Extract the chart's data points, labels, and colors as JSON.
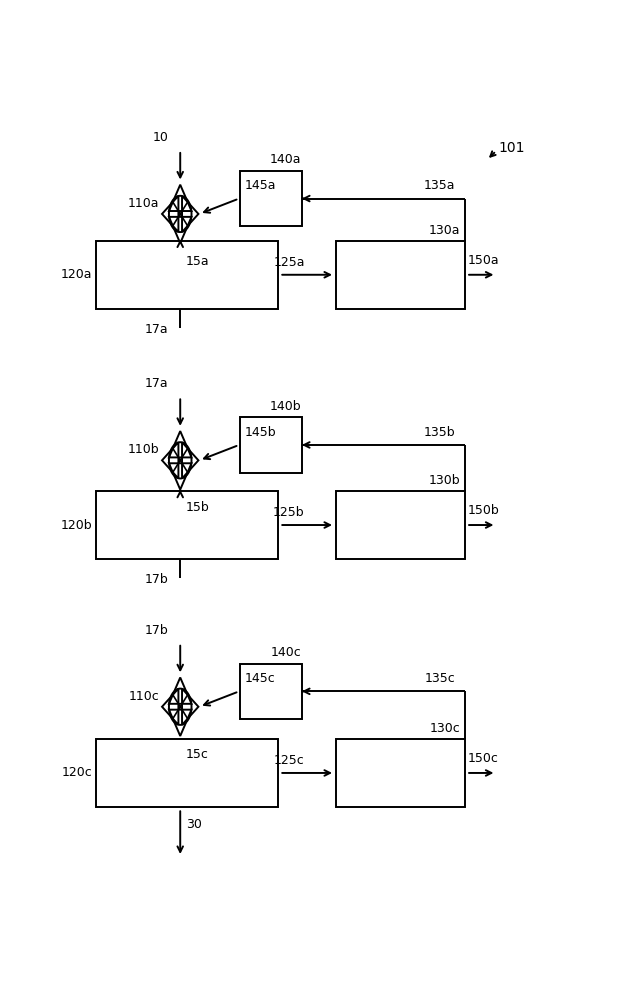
{
  "bg_color": "#ffffff",
  "line_color": "#000000",
  "lw": 1.4,
  "fontsize": 9,
  "valve_r": 0.038,
  "stages": [
    {
      "suf": "a",
      "vcx": 0.215,
      "vcy": 0.878,
      "b120": [
        0.04,
        0.755,
        0.38,
        0.088
      ],
      "b130": [
        0.54,
        0.755,
        0.27,
        0.088
      ],
      "b140": [
        0.34,
        0.862,
        0.13,
        0.072
      ],
      "prev_lbl": "10",
      "from_top": true,
      "next_lbl": "17a"
    },
    {
      "suf": "b",
      "vcx": 0.215,
      "vcy": 0.558,
      "b120": [
        0.04,
        0.43,
        0.38,
        0.088
      ],
      "b130": [
        0.54,
        0.43,
        0.27,
        0.088
      ],
      "b140": [
        0.34,
        0.542,
        0.13,
        0.072
      ],
      "prev_lbl": "17a",
      "from_top": false,
      "next_lbl": "17b"
    },
    {
      "suf": "c",
      "vcx": 0.215,
      "vcy": 0.238,
      "b120": [
        0.04,
        0.108,
        0.38,
        0.088
      ],
      "b130": [
        0.54,
        0.108,
        0.27,
        0.088
      ],
      "b140": [
        0.34,
        0.222,
        0.13,
        0.072
      ],
      "prev_lbl": "17b",
      "from_top": false,
      "next_lbl": "30"
    }
  ]
}
